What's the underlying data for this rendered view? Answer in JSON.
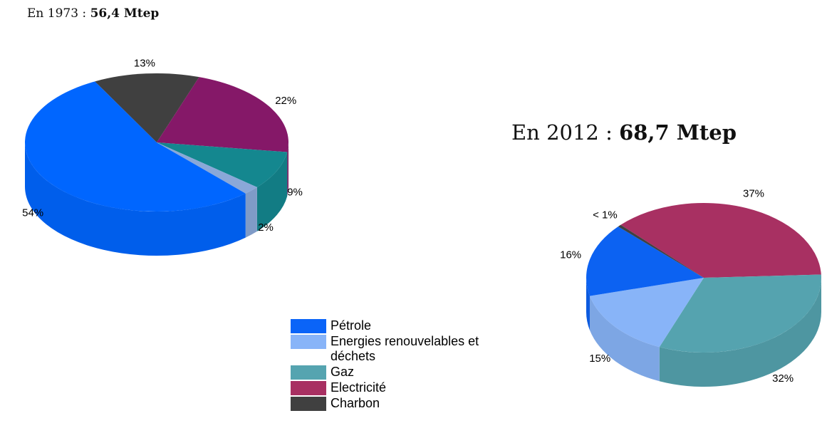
{
  "chart_data": [
    {
      "type": "pie",
      "title": "En 1973 :",
      "total": "56,4 Mtep",
      "values": [
        54,
        2,
        9,
        22,
        13
      ],
      "value_labels": [
        "54%",
        "2%",
        "9%",
        "22%",
        "13%"
      ],
      "colors": [
        "#0066ff",
        "#8aa8d8",
        "#14878f",
        "#851868",
        "#404040"
      ]
    },
    {
      "type": "pie",
      "title": "En 2012 :",
      "total": "68,7 Mtep",
      "values": [
        16,
        15,
        32,
        37,
        0.5
      ],
      "value_labels": [
        "16%",
        "15%",
        "32%",
        "37%",
        "< 1%"
      ],
      "colors": [
        "#0c62f2",
        "#88b4f8",
        "#55a3af",
        "#a83062",
        "#404040"
      ]
    }
  ],
  "legend": {
    "categories": [
      "Pétrole",
      "Energies renouvelables et déchets",
      "Gaz",
      "Electricité",
      "Charbon"
    ],
    "colors": [
      "#0a64f8",
      "#88b4f8",
      "#55a4b0",
      "#a83062",
      "#404040"
    ]
  }
}
